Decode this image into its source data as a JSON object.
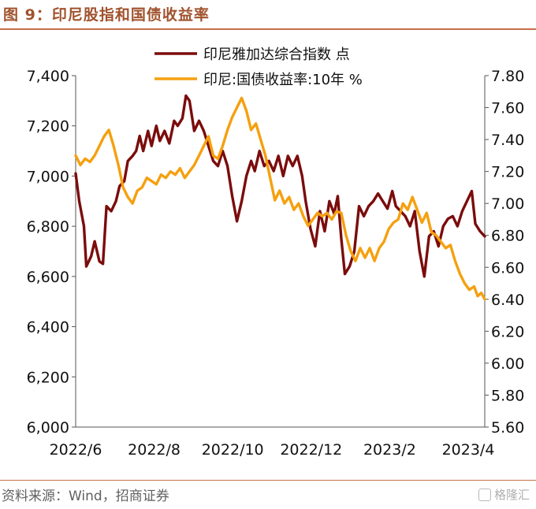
{
  "header": {
    "title": "图 9：印尼股指和国债收益率"
  },
  "footer": {
    "source": "资料来源：Wind，招商证券",
    "watermark": "格隆汇"
  },
  "chart_data": {
    "type": "line",
    "xlabel": "",
    "x_ticks": [
      "2022/6",
      "2022/8",
      "2022/10",
      "2022/12",
      "2023/2",
      "2023/4"
    ],
    "x_range": [
      "2022-05-10",
      "2023-04-20"
    ],
    "y_left": {
      "ylabel": "",
      "ylim": [
        6000,
        7400
      ],
      "ticks": [
        "6,000",
        "6,200",
        "6,400",
        "6,600",
        "6,800",
        "7,000",
        "7,200",
        "7,400"
      ]
    },
    "y_right": {
      "ylabel": "",
      "ylim": [
        5.6,
        7.8
      ],
      "ticks": [
        "5.60",
        "5.80",
        "6.00",
        "6.20",
        "6.40",
        "6.60",
        "6.80",
        "7.00",
        "7.20",
        "7.40",
        "7.60",
        "7.80"
      ]
    },
    "grid": false,
    "legend": "top-center",
    "colors": {
      "jci": "#7b0c0c",
      "bond": "#f5a00f"
    },
    "series": [
      {
        "name": "印尼雅加达综合指数 点",
        "axis": "left",
        "points": [
          [
            "2022-05-10",
            7010
          ],
          [
            "2022-05-13",
            6900
          ],
          [
            "2022-05-17",
            6800
          ],
          [
            "2022-05-19",
            6640
          ],
          [
            "2022-05-23",
            6680
          ],
          [
            "2022-05-26",
            6740
          ],
          [
            "2022-05-30",
            6660
          ],
          [
            "2022-06-02",
            6650
          ],
          [
            "2022-06-05",
            6880
          ],
          [
            "2022-06-09",
            6860
          ],
          [
            "2022-06-13",
            6900
          ],
          [
            "2022-06-16",
            6960
          ],
          [
            "2022-06-20",
            6980
          ],
          [
            "2022-06-23",
            7060
          ],
          [
            "2022-06-27",
            7080
          ],
          [
            "2022-06-30",
            7100
          ],
          [
            "2022-07-03",
            7160
          ],
          [
            "2022-07-06",
            7100
          ],
          [
            "2022-07-10",
            7180
          ],
          [
            "2022-07-13",
            7120
          ],
          [
            "2022-07-17",
            7200
          ],
          [
            "2022-07-20",
            7140
          ],
          [
            "2022-07-24",
            7180
          ],
          [
            "2022-07-28",
            7130
          ],
          [
            "2022-08-01",
            7220
          ],
          [
            "2022-08-04",
            7200
          ],
          [
            "2022-08-08",
            7230
          ],
          [
            "2022-08-11",
            7320
          ],
          [
            "2022-08-14",
            7300
          ],
          [
            "2022-08-18",
            7180
          ],
          [
            "2022-08-22",
            7220
          ],
          [
            "2022-08-26",
            7180
          ],
          [
            "2022-08-30",
            7120
          ],
          [
            "2022-09-03",
            7060
          ],
          [
            "2022-09-07",
            7040
          ],
          [
            "2022-09-11",
            7100
          ],
          [
            "2022-09-15",
            7040
          ],
          [
            "2022-09-19",
            6920
          ],
          [
            "2022-09-23",
            6820
          ],
          [
            "2022-09-27",
            6900
          ],
          [
            "2022-10-01",
            7000
          ],
          [
            "2022-10-05",
            7060
          ],
          [
            "2022-10-08",
            7020
          ],
          [
            "2022-10-12",
            7100
          ],
          [
            "2022-10-16",
            7040
          ],
          [
            "2022-10-20",
            7060
          ],
          [
            "2022-10-24",
            7020
          ],
          [
            "2022-10-28",
            7080
          ],
          [
            "2022-11-01",
            7000
          ],
          [
            "2022-11-05",
            7080
          ],
          [
            "2022-11-09",
            7040
          ],
          [
            "2022-11-13",
            7080
          ],
          [
            "2022-11-17",
            7000
          ],
          [
            "2022-11-20",
            6900
          ],
          [
            "2022-11-24",
            6790
          ],
          [
            "2022-11-28",
            6720
          ],
          [
            "2022-12-02",
            6860
          ],
          [
            "2022-12-06",
            6780
          ],
          [
            "2022-12-10",
            6900
          ],
          [
            "2022-12-14",
            6850
          ],
          [
            "2022-12-17",
            6920
          ],
          [
            "2022-12-20",
            6750
          ],
          [
            "2022-12-23",
            6610
          ],
          [
            "2022-12-27",
            6640
          ],
          [
            "2022-12-31",
            6700
          ],
          [
            "2023-01-04",
            6880
          ],
          [
            "2023-01-08",
            6840
          ],
          [
            "2023-01-12",
            6880
          ],
          [
            "2023-01-16",
            6900
          ],
          [
            "2023-01-20",
            6930
          ],
          [
            "2023-01-24",
            6900
          ],
          [
            "2023-01-28",
            6870
          ],
          [
            "2023-02-01",
            6940
          ],
          [
            "2023-02-04",
            6880
          ],
          [
            "2023-02-08",
            6860
          ],
          [
            "2023-02-12",
            6840
          ],
          [
            "2023-02-16",
            6800
          ],
          [
            "2023-02-20",
            6860
          ],
          [
            "2023-02-24",
            6700
          ],
          [
            "2023-02-28",
            6600
          ],
          [
            "2023-03-04",
            6760
          ],
          [
            "2023-03-08",
            6780
          ],
          [
            "2023-03-12",
            6720
          ],
          [
            "2023-03-16",
            6800
          ],
          [
            "2023-03-20",
            6830
          ],
          [
            "2023-03-24",
            6840
          ],
          [
            "2023-03-28",
            6800
          ],
          [
            "2023-04-01",
            6860
          ],
          [
            "2023-04-05",
            6900
          ],
          [
            "2023-04-09",
            6940
          ],
          [
            "2023-04-12",
            6810
          ],
          [
            "2023-04-16",
            6780
          ],
          [
            "2023-04-20",
            6760
          ]
        ]
      },
      {
        "name": "印尼:国债收益率:10年 %",
        "axis": "right",
        "points": [
          [
            "2022-05-10",
            7.3
          ],
          [
            "2022-05-14",
            7.24
          ],
          [
            "2022-05-18",
            7.28
          ],
          [
            "2022-05-22",
            7.26
          ],
          [
            "2022-05-26",
            7.3
          ],
          [
            "2022-05-30",
            7.36
          ],
          [
            "2022-06-03",
            7.42
          ],
          [
            "2022-06-07",
            7.46
          ],
          [
            "2022-06-11",
            7.36
          ],
          [
            "2022-06-15",
            7.24
          ],
          [
            "2022-06-19",
            7.1
          ],
          [
            "2022-06-23",
            7.04
          ],
          [
            "2022-06-27",
            7.0
          ],
          [
            "2022-07-01",
            7.08
          ],
          [
            "2022-07-05",
            7.1
          ],
          [
            "2022-07-09",
            7.16
          ],
          [
            "2022-07-13",
            7.14
          ],
          [
            "2022-07-17",
            7.12
          ],
          [
            "2022-07-21",
            7.18
          ],
          [
            "2022-07-25",
            7.16
          ],
          [
            "2022-07-29",
            7.2
          ],
          [
            "2022-08-02",
            7.18
          ],
          [
            "2022-08-06",
            7.22
          ],
          [
            "2022-08-10",
            7.16
          ],
          [
            "2022-08-14",
            7.2
          ],
          [
            "2022-08-18",
            7.24
          ],
          [
            "2022-08-22",
            7.3
          ],
          [
            "2022-08-26",
            7.36
          ],
          [
            "2022-08-30",
            7.42
          ],
          [
            "2022-09-03",
            7.3
          ],
          [
            "2022-09-07",
            7.28
          ],
          [
            "2022-09-11",
            7.36
          ],
          [
            "2022-09-15",
            7.46
          ],
          [
            "2022-09-19",
            7.54
          ],
          [
            "2022-09-23",
            7.6
          ],
          [
            "2022-09-27",
            7.66
          ],
          [
            "2022-10-01",
            7.58
          ],
          [
            "2022-10-05",
            7.46
          ],
          [
            "2022-10-09",
            7.5
          ],
          [
            "2022-10-13",
            7.4
          ],
          [
            "2022-10-17",
            7.3
          ],
          [
            "2022-10-21",
            7.16
          ],
          [
            "2022-10-25",
            7.02
          ],
          [
            "2022-10-29",
            7.08
          ],
          [
            "2022-11-02",
            7.0
          ],
          [
            "2022-11-06",
            7.04
          ],
          [
            "2022-11-10",
            6.96
          ],
          [
            "2022-11-14",
            7.0
          ],
          [
            "2022-11-18",
            6.92
          ],
          [
            "2022-11-22",
            6.86
          ],
          [
            "2022-11-26",
            6.9
          ],
          [
            "2022-11-30",
            6.94
          ],
          [
            "2022-12-04",
            6.92
          ],
          [
            "2022-12-08",
            6.94
          ],
          [
            "2022-12-12",
            6.9
          ],
          [
            "2022-12-16",
            6.95
          ],
          [
            "2022-12-20",
            6.94
          ],
          [
            "2022-12-24",
            6.8
          ],
          [
            "2022-12-28",
            6.7
          ],
          [
            "2023-01-01",
            6.64
          ],
          [
            "2023-01-05",
            6.72
          ],
          [
            "2023-01-09",
            6.66
          ],
          [
            "2023-01-13",
            6.72
          ],
          [
            "2023-01-17",
            6.64
          ],
          [
            "2023-01-21",
            6.72
          ],
          [
            "2023-01-25",
            6.76
          ],
          [
            "2023-01-29",
            6.84
          ],
          [
            "2023-02-02",
            6.88
          ],
          [
            "2023-02-06",
            6.9
          ],
          [
            "2023-02-10",
            7.0
          ],
          [
            "2023-02-14",
            6.96
          ],
          [
            "2023-02-18",
            7.04
          ],
          [
            "2023-02-22",
            6.96
          ],
          [
            "2023-02-26",
            6.88
          ],
          [
            "2023-03-02",
            6.94
          ],
          [
            "2023-03-06",
            6.82
          ],
          [
            "2023-03-10",
            6.8
          ],
          [
            "2023-03-14",
            6.76
          ],
          [
            "2023-03-18",
            6.72
          ],
          [
            "2023-03-22",
            6.74
          ],
          [
            "2023-03-26",
            6.64
          ],
          [
            "2023-03-30",
            6.56
          ],
          [
            "2023-04-03",
            6.5
          ],
          [
            "2023-04-07",
            6.46
          ],
          [
            "2023-04-11",
            6.48
          ],
          [
            "2023-04-14",
            6.42
          ],
          [
            "2023-04-17",
            6.44
          ],
          [
            "2023-04-20",
            6.4
          ]
        ]
      }
    ]
  }
}
